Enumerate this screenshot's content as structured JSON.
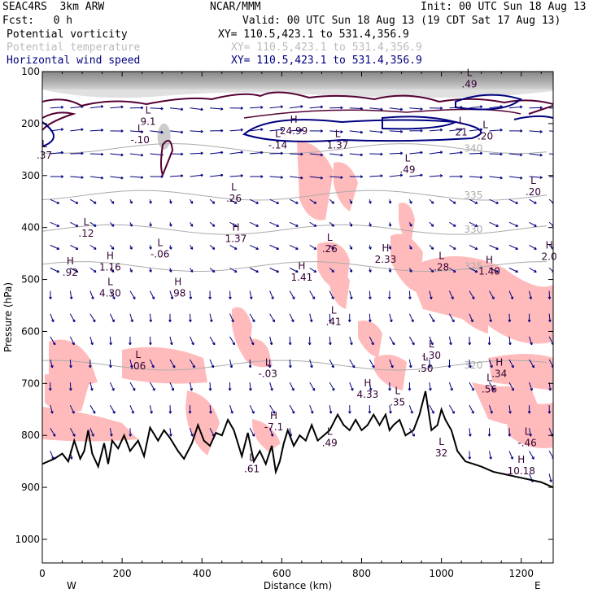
{
  "header": {
    "model": "SEAC4RS  3km ARW",
    "org": "NCAR/MMM",
    "init": "Init: 00 UTC Sun 18 Aug 13",
    "fcst": "Fcst:   0 h",
    "valid": "Valid: 00 UTC Sun 18 Aug 13 (19 CDT Sat 17 Aug 13)"
  },
  "legend": [
    {
      "label": "Potential vorticity",
      "xy": "XY= 110.5,423.1 to 531.4,356.9",
      "color": "#000000"
    },
    {
      "label": "Potential temperature",
      "xy": "XY= 110.5,423.1 to 531.4,356.9",
      "color": "#bbbbbb"
    },
    {
      "label": "Horizontal wind speed",
      "xy": "XY= 110.5,423.1 to 531.4,356.9",
      "color": "#000080"
    }
  ],
  "chart_data": {
    "type": "cross-section",
    "xlabel": "Distance (km)",
    "ylabel": "Pressure (hPa)",
    "xlim": [
      0,
      1280
    ],
    "ylim": [
      1050,
      100
    ],
    "x_ticks": [
      "0",
      "200",
      "400",
      "600",
      "800",
      "1000",
      "1200"
    ],
    "y_ticks": [
      "100",
      "200",
      "300",
      "400",
      "500",
      "600",
      "700",
      "800",
      "900",
      "1000"
    ],
    "x_dir_left": "W",
    "x_dir_right": "E",
    "colors": {
      "pv_shade": "#ffbbbb",
      "theta": "#aaaaaa",
      "wind": "#000080",
      "pv_contour": "#550033",
      "terrain": "#000000"
    },
    "theta_contours": [
      {
        "label": "340",
        "p": 248
      },
      {
        "label": "335",
        "p": 338
      },
      {
        "label": "330",
        "p": 404
      },
      {
        "label": "325",
        "p": 475
      },
      {
        "label": "320",
        "p": 665
      }
    ],
    "extrema": [
      {
        "type": "L",
        "value": "9.1",
        "x": 265,
        "p": 190
      },
      {
        "type": "L",
        "value": ".49",
        "x": 1070,
        "p": 118
      },
      {
        "type": "L",
        "value": "-.10",
        "x": 245,
        "p": 225
      },
      {
        "type": "L",
        "value": ".37",
        "x": 5,
        "p": 255
      },
      {
        "type": "H",
        "value": "24.99",
        "x": 630,
        "p": 208
      },
      {
        "type": "L",
        "value": "-.14",
        "x": 590,
        "p": 235
      },
      {
        "type": "L",
        "value": "1.37",
        "x": 740,
        "p": 235
      },
      {
        "type": "L",
        "value": "21",
        "x": 1050,
        "p": 210
      },
      {
        "type": "L",
        "value": ".20",
        "x": 1110,
        "p": 218
      },
      {
        "type": "L",
        "value": ".49",
        "x": 915,
        "p": 282
      },
      {
        "type": "L",
        "value": ".26",
        "x": 480,
        "p": 338
      },
      {
        "type": "L",
        "value": ".20",
        "x": 1230,
        "p": 325
      },
      {
        "type": "L",
        "value": ".12",
        "x": 110,
        "p": 405
      },
      {
        "type": "H",
        "value": "1.37",
        "x": 485,
        "p": 415
      },
      {
        "type": "L",
        "value": "-.06",
        "x": 295,
        "p": 445
      },
      {
        "type": "L",
        "value": ".26",
        "x": 720,
        "p": 435
      },
      {
        "type": "H",
        "value": "2.33",
        "x": 860,
        "p": 455
      },
      {
        "type": "L",
        "value": ".28",
        "x": 1000,
        "p": 470
      },
      {
        "type": "H",
        "value": "1.40",
        "x": 1120,
        "p": 478
      },
      {
        "type": "H",
        "value": "2.0",
        "x": 1270,
        "p": 450
      },
      {
        "type": "H",
        "value": ".92",
        "x": 70,
        "p": 480
      },
      {
        "type": "H",
        "value": "1.16",
        "x": 170,
        "p": 470
      },
      {
        "type": "H",
        "value": "1.41",
        "x": 650,
        "p": 490
      },
      {
        "type": "L",
        "value": "4.30",
        "x": 170,
        "p": 520
      },
      {
        "type": "H",
        "value": ".98",
        "x": 340,
        "p": 520
      },
      {
        "type": "L",
        "value": ".41",
        "x": 730,
        "p": 575
      },
      {
        "type": "L",
        "value": "-.30",
        "x": 975,
        "p": 640
      },
      {
        "type": "L",
        "value": ".06",
        "x": 240,
        "p": 660
      },
      {
        "type": "L",
        "value": ".50",
        "x": 960,
        "p": 665
      },
      {
        "type": "L",
        "value": "-.03",
        "x": 565,
        "p": 675
      },
      {
        "type": "H",
        "value": ".34",
        "x": 1145,
        "p": 675
      },
      {
        "type": "L",
        "value": ".56",
        "x": 1120,
        "p": 705
      },
      {
        "type": "H",
        "value": "4.33",
        "x": 815,
        "p": 715
      },
      {
        "type": "L",
        "value": ".35",
        "x": 890,
        "p": 730
      },
      {
        "type": "H",
        "value": "-7.1",
        "x": 580,
        "p": 778
      },
      {
        "type": "L",
        "value": ".49",
        "x": 720,
        "p": 808
      },
      {
        "type": "L",
        "value": "-.46",
        "x": 1215,
        "p": 808
      },
      {
        "type": "L",
        "value": "32",
        "x": 1000,
        "p": 828
      },
      {
        "type": "L",
        "value": ".61",
        "x": 525,
        "p": 858
      },
      {
        "type": "H",
        "value": "10.18",
        "x": 1200,
        "p": 862
      }
    ],
    "terrain": {
      "x": [
        0,
        30,
        50,
        65,
        80,
        95,
        105,
        115,
        125,
        140,
        155,
        165,
        175,
        190,
        205,
        220,
        240,
        255,
        270,
        290,
        305,
        320,
        340,
        355,
        375,
        390,
        405,
        420,
        435,
        450,
        465,
        480,
        500,
        515,
        530,
        545,
        560,
        575,
        585,
        595,
        605,
        615,
        630,
        645,
        660,
        675,
        690,
        705,
        720,
        740,
        755,
        770,
        785,
        800,
        815,
        830,
        845,
        860,
        870,
        880,
        895,
        910,
        930,
        945,
        960,
        975,
        990,
        1000,
        1010,
        1025,
        1040,
        1060,
        1080,
        1100,
        1130,
        1160,
        1190,
        1220,
        1250,
        1280
      ],
      "p": [
        855,
        845,
        835,
        850,
        810,
        845,
        830,
        790,
        835,
        860,
        815,
        855,
        810,
        825,
        800,
        830,
        810,
        840,
        785,
        810,
        790,
        805,
        830,
        845,
        815,
        780,
        810,
        820,
        795,
        800,
        770,
        790,
        840,
        795,
        850,
        830,
        855,
        820,
        870,
        850,
        815,
        790,
        820,
        800,
        810,
        780,
        810,
        800,
        790,
        760,
        780,
        790,
        770,
        790,
        780,
        760,
        780,
        760,
        790,
        780,
        770,
        800,
        790,
        760,
        715,
        790,
        780,
        750,
        770,
        790,
        830,
        850,
        855,
        860,
        870,
        875,
        880,
        885,
        890,
        900
      ]
    }
  }
}
